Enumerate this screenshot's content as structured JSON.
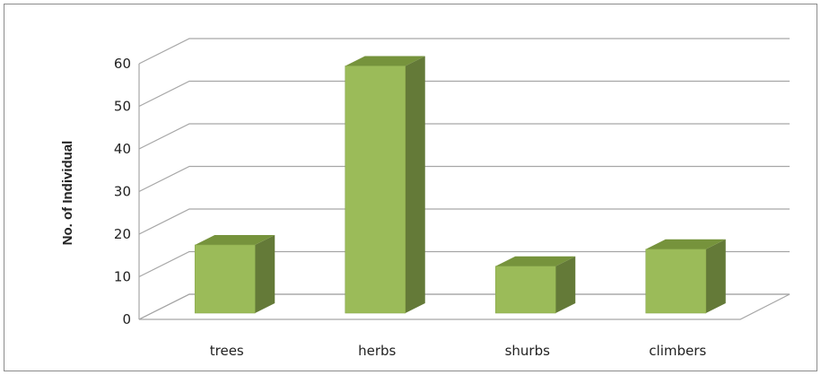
{
  "chart_data": {
    "type": "bar",
    "style": "3d-column",
    "categories": [
      "trees",
      "herbs",
      "shurbs",
      "climbers"
    ],
    "values": [
      16,
      58,
      11,
      15
    ],
    "title": "",
    "xlabel": "",
    "ylabel": "No. of Individual",
    "ylim": [
      0,
      60
    ],
    "yticks": [
      0,
      10,
      20,
      30,
      40,
      50,
      60
    ],
    "grid": true,
    "legend": "none",
    "colors": {
      "bar_front": "#9bbb59",
      "bar_top": "#76933c",
      "bar_side": "#647a38",
      "grid": "#a6a6a6",
      "axis_text": "#222222"
    }
  }
}
